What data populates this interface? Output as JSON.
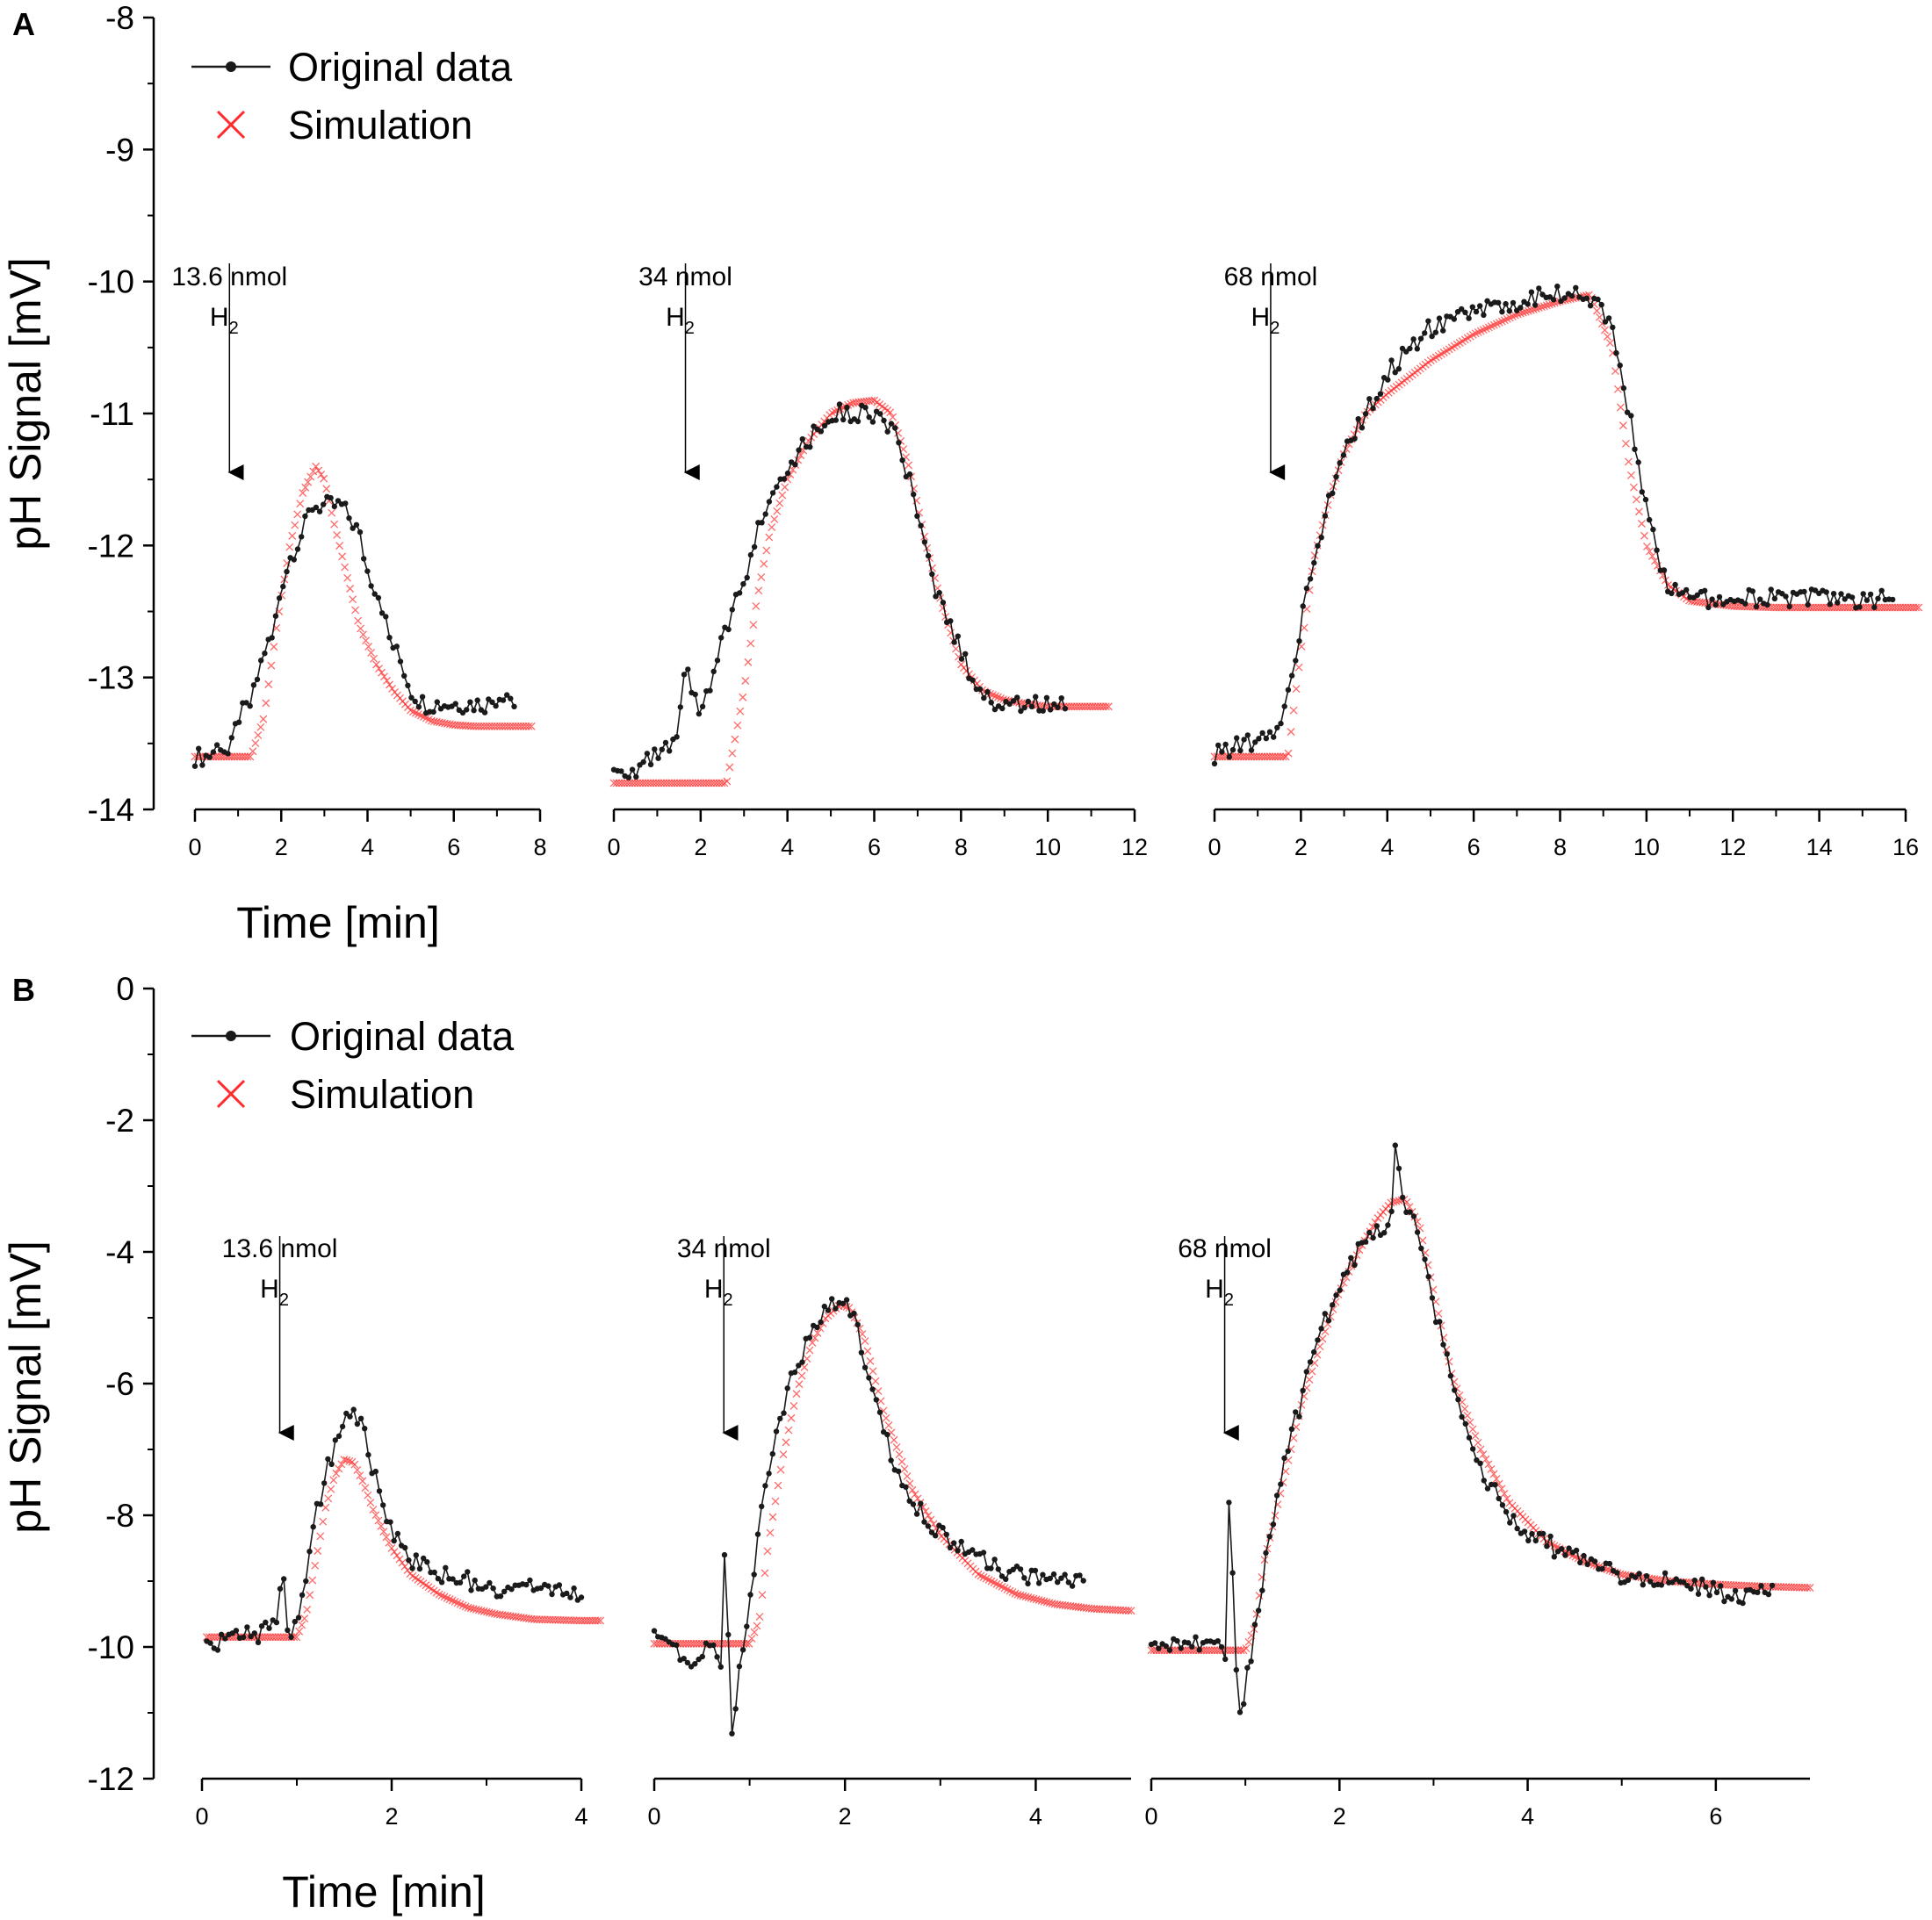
{
  "legend": {
    "original": "Original data",
    "simulation": "Simulation"
  },
  "colors": {
    "original": "#1a1a1a",
    "simulation": "#ff2a2a"
  },
  "chart_data": [
    {
      "panel": "A",
      "type": "line",
      "ylabel": "pH Signal [mV]",
      "xlabel": "Time [min]",
      "ylim": [
        -14,
        -8
      ],
      "yticks": [
        "-8",
        "-9",
        "-10",
        "-11",
        "-12",
        "-13",
        "-14"
      ],
      "subplots": [
        {
          "xlim": [
            0,
            8
          ],
          "xticks": [
            "0",
            "2",
            "4",
            "6",
            "8"
          ],
          "annotation": {
            "amount": "13.6 nmol",
            "gas": "H",
            "sub": "2",
            "x": 0.8
          },
          "series": [
            {
              "name": "Original data",
              "x": [
                0,
                0.3,
                0.6,
                0.8,
                1.0,
                1.3,
                1.6,
                1.8,
                2.0,
                2.2,
                2.5,
                2.7,
                2.9,
                3.1,
                3.4,
                3.6,
                3.8,
                4.0,
                4.3,
                4.5,
                4.8,
                5.0,
                5.3,
                5.6,
                6.0,
                6.4,
                6.8,
                7.2,
                7.4
              ],
              "y": [
                -13.6,
                -13.6,
                -13.5,
                -13.6,
                -13.3,
                -13.2,
                -12.8,
                -12.7,
                -12.3,
                -12.1,
                -11.9,
                -11.7,
                -11.7,
                -11.7,
                -11.7,
                -11.8,
                -11.9,
                -12.2,
                -12.4,
                -12.7,
                -12.9,
                -13.1,
                -13.2,
                -13.2,
                -13.2,
                -13.2,
                -13.2,
                -13.1,
                -13.2
              ]
            },
            {
              "name": "Simulation",
              "x": [
                0,
                0.6,
                1.3,
                1.6,
                1.9,
                2.2,
                2.5,
                2.8,
                3.0,
                3.2,
                3.5,
                3.8,
                4.2,
                4.6,
                5.0,
                5.5,
                6.0,
                6.5,
                7.0,
                7.5,
                7.8
              ],
              "y": [
                -13.6,
                -13.6,
                -13.6,
                -13.3,
                -12.6,
                -12.0,
                -11.6,
                -11.4,
                -11.5,
                -11.8,
                -12.2,
                -12.6,
                -12.9,
                -13.1,
                -13.25,
                -13.33,
                -13.36,
                -13.37,
                -13.37,
                -13.37,
                -13.37
              ]
            }
          ]
        },
        {
          "xlim": [
            0,
            12
          ],
          "xticks": [
            "0",
            "2",
            "4",
            "6",
            "8",
            "10",
            "12"
          ],
          "annotation": {
            "amount": "34 nmol",
            "gas": "H",
            "sub": "2",
            "x": 1.65
          },
          "series": [
            {
              "name": "Original data",
              "x": [
                0,
                0.5,
                1.0,
                1.5,
                1.6,
                2.0,
                2.3,
                2.6,
                3.0,
                3.3,
                3.6,
                4.0,
                4.5,
                5.0,
                5.5,
                6.0,
                6.4,
                6.8,
                7.2,
                7.6,
                8.0,
                8.4,
                8.8,
                9.2,
                9.6,
                10.0,
                10.4
              ],
              "y": [
                -13.7,
                -13.7,
                -13.6,
                -13.5,
                -12.9,
                -13.3,
                -13.0,
                -12.6,
                -12.3,
                -11.9,
                -11.6,
                -11.4,
                -11.2,
                -11.0,
                -11.0,
                -11.0,
                -11.1,
                -11.5,
                -12.1,
                -12.5,
                -12.8,
                -13.1,
                -13.2,
                -13.2,
                -13.2,
                -13.2,
                -13.2
              ]
            },
            {
              "name": "Simulation",
              "x": [
                0,
                1.0,
                2.0,
                2.6,
                3.0,
                3.3,
                3.6,
                4.0,
                4.5,
                5.0,
                5.5,
                6.0,
                6.4,
                6.8,
                7.2,
                7.6,
                8.0,
                8.5,
                9.0,
                9.5,
                10.0,
                10.5,
                11.0,
                11.4
              ],
              "y": [
                -13.8,
                -13.8,
                -13.8,
                -13.8,
                -13.1,
                -12.4,
                -11.9,
                -11.5,
                -11.2,
                -11.0,
                -10.92,
                -10.9,
                -11.0,
                -11.4,
                -12.0,
                -12.5,
                -12.9,
                -13.1,
                -13.17,
                -13.2,
                -13.22,
                -13.22,
                -13.22,
                -13.22
              ]
            }
          ]
        },
        {
          "xlim": [
            0,
            16
          ],
          "xticks": [
            "0",
            "2",
            "4",
            "6",
            "8",
            "10",
            "12",
            "14",
            "16"
          ],
          "annotation": {
            "amount": "68 nmol",
            "gas": "H",
            "sub": "2",
            "x": 1.3
          },
          "series": [
            {
              "name": "Original data",
              "x": [
                0,
                0.5,
                1.0,
                1.5,
                1.8,
                2.0,
                2.3,
                2.6,
                3.0,
                3.5,
                4.0,
                4.5,
                5.0,
                5.5,
                6.0,
                6.5,
                7.0,
                7.5,
                8.0,
                8.5,
                9.0,
                9.3,
                9.6,
                9.9,
                10.2,
                10.5,
                11.0,
                11.5,
                12.0,
                13.0,
                14.0,
                15.0,
                15.7
              ],
              "y": [
                -13.6,
                -13.5,
                -13.5,
                -13.4,
                -13.0,
                -12.6,
                -12.1,
                -11.7,
                -11.3,
                -11.0,
                -10.7,
                -10.5,
                -10.35,
                -10.3,
                -10.25,
                -10.2,
                -10.15,
                -10.1,
                -10.1,
                -10.1,
                -10.2,
                -10.5,
                -11.0,
                -11.6,
                -12.0,
                -12.3,
                -12.4,
                -12.4,
                -12.4,
                -12.4,
                -12.4,
                -12.4,
                -12.4
              ]
            },
            {
              "name": "Simulation",
              "x": [
                0,
                1.0,
                1.7,
                2.0,
                2.3,
                2.7,
                3.0,
                3.5,
                4.0,
                5.0,
                6.0,
                7.0,
                8.0,
                8.7,
                9.2,
                9.6,
                10.0,
                10.5,
                11.0,
                12.0,
                13.0,
                14.0,
                15.0,
                16.0,
                16.3
              ],
              "y": [
                -13.6,
                -13.6,
                -13.6,
                -12.8,
                -12.1,
                -11.6,
                -11.3,
                -11.0,
                -10.85,
                -10.6,
                -10.4,
                -10.25,
                -10.15,
                -10.1,
                -10.5,
                -11.4,
                -12.0,
                -12.3,
                -12.42,
                -12.46,
                -12.47,
                -12.47,
                -12.47,
                -12.47,
                -12.47
              ]
            }
          ]
        }
      ]
    },
    {
      "panel": "B",
      "type": "line",
      "ylabel": "pH Signal [mV]",
      "xlabel": "Time [min]",
      "ylim": [
        -12,
        0
      ],
      "yticks": [
        "0",
        "-2",
        "-4",
        "-6",
        "-8",
        "-10",
        "-12"
      ],
      "subplots": [
        {
          "xlim": [
            0,
            4
          ],
          "xticks": [
            "0",
            "2",
            "4"
          ],
          "annotation": {
            "amount": "13.6 nmol",
            "gas": "H",
            "sub": "2",
            "x": 0.82
          },
          "series": [
            {
              "name": "Original data",
              "x": [
                0.05,
                0.3,
                0.6,
                0.8,
                0.85,
                0.9,
                1.0,
                1.1,
                1.2,
                1.3,
                1.4,
                1.5,
                1.6,
                1.7,
                1.8,
                2.0,
                2.2,
                2.5,
                2.8,
                3.1,
                3.4,
                3.7,
                4.0
              ],
              "y": [
                -10.0,
                -9.9,
                -9.8,
                -9.7,
                -8.8,
                -9.8,
                -9.7,
                -9.0,
                -8.0,
                -7.4,
                -7.0,
                -6.5,
                -6.4,
                -6.7,
                -7.3,
                -8.2,
                -8.7,
                -8.9,
                -9.0,
                -9.1,
                -9.1,
                -9.1,
                -9.3
              ]
            },
            {
              "name": "Simulation",
              "x": [
                0.05,
                0.5,
                1.0,
                1.1,
                1.2,
                1.3,
                1.4,
                1.5,
                1.6,
                1.7,
                1.8,
                2.0,
                2.2,
                2.5,
                2.8,
                3.1,
                3.5,
                4.0,
                4.2
              ],
              "y": [
                -9.85,
                -9.85,
                -9.85,
                -9.5,
                -8.7,
                -7.9,
                -7.4,
                -7.15,
                -7.2,
                -7.5,
                -7.9,
                -8.5,
                -8.9,
                -9.2,
                -9.4,
                -9.5,
                -9.58,
                -9.6,
                -9.6
              ]
            }
          ]
        },
        {
          "xlim": [
            0,
            5
          ],
          "xticks": [
            "0",
            "2",
            "4"
          ],
          "annotation": {
            "amount": "34 nmol",
            "gas": "H",
            "sub": "2",
            "x": 0.73
          },
          "series": [
            {
              "name": "Original data",
              "x": [
                0,
                0.2,
                0.4,
                0.6,
                0.7,
                0.75,
                0.8,
                0.85,
                0.9,
                1.0,
                1.1,
                1.2,
                1.3,
                1.45,
                1.6,
                1.75,
                1.9,
                2.0,
                2.1,
                2.2,
                2.35,
                2.5,
                2.7,
                3.0,
                3.3,
                3.6,
                3.9,
                4.2,
                4.5
              ],
              "y": [
                -9.8,
                -10.0,
                -10.2,
                -10.0,
                -10.4,
                -8.0,
                -11.4,
                -10.9,
                -10.2,
                -9.3,
                -8.2,
                -7.3,
                -6.6,
                -5.9,
                -5.4,
                -5.0,
                -4.8,
                -4.7,
                -5.0,
                -5.6,
                -6.4,
                -7.2,
                -7.8,
                -8.3,
                -8.6,
                -8.8,
                -8.9,
                -8.9,
                -9.0
              ]
            },
            {
              "name": "Simulation",
              "x": [
                0,
                0.5,
                1.0,
                1.1,
                1.2,
                1.35,
                1.5,
                1.65,
                1.8,
                1.95,
                2.05,
                2.2,
                2.4,
                2.7,
                3.0,
                3.4,
                3.8,
                4.2,
                4.6,
                5.0
              ],
              "y": [
                -9.95,
                -9.95,
                -9.95,
                -9.6,
                -8.4,
                -7.1,
                -6.1,
                -5.4,
                -5.0,
                -4.8,
                -4.85,
                -5.3,
                -6.4,
                -7.6,
                -8.3,
                -8.9,
                -9.2,
                -9.35,
                -9.42,
                -9.45
              ]
            }
          ]
        },
        {
          "xlim": [
            0,
            7
          ],
          "xticks": [
            "0",
            "2",
            "4",
            "6"
          ],
          "annotation": {
            "amount": "68 nmol",
            "gas": "H",
            "sub": "2",
            "x": 0.78
          },
          "series": [
            {
              "name": "Original data",
              "x": [
                0,
                0.3,
                0.6,
                0.8,
                0.83,
                0.9,
                0.95,
                1.0,
                1.1,
                1.2,
                1.4,
                1.6,
                1.8,
                2.0,
                2.2,
                2.4,
                2.55,
                2.6,
                2.7,
                2.85,
                3.0,
                3.2,
                3.4,
                3.7,
                4.0,
                4.3,
                4.6,
                5.0,
                5.4,
                5.8,
                6.2,
                6.6
              ],
              "y": [
                -10.0,
                -9.9,
                -10.0,
                -10.1,
                -7.2,
                -10.4,
                -11.2,
                -10.6,
                -9.8,
                -8.8,
                -7.3,
                -6.2,
                -5.2,
                -4.5,
                -4.0,
                -3.7,
                -3.5,
                -2.3,
                -3.4,
                -3.7,
                -4.8,
                -6.0,
                -7.0,
                -7.8,
                -8.3,
                -8.5,
                -8.7,
                -8.9,
                -9.0,
                -9.1,
                -9.2,
                -9.2
              ]
            },
            {
              "name": "Simulation",
              "x": [
                0,
                0.5,
                1.0,
                1.1,
                1.2,
                1.4,
                1.6,
                1.8,
                2.0,
                2.2,
                2.4,
                2.55,
                2.7,
                2.85,
                3.0,
                3.2,
                3.5,
                3.8,
                4.2,
                4.6,
                5.0,
                5.5,
                6.0,
                6.5,
                7.0
              ],
              "y": [
                -10.05,
                -10.05,
                -10.05,
                -9.7,
                -8.7,
                -7.5,
                -6.3,
                -5.4,
                -4.6,
                -4.0,
                -3.5,
                -3.25,
                -3.2,
                -3.6,
                -4.6,
                -5.9,
                -7.0,
                -7.8,
                -8.4,
                -8.7,
                -8.9,
                -9.0,
                -9.05,
                -9.08,
                -9.1
              ]
            }
          ]
        }
      ]
    }
  ]
}
